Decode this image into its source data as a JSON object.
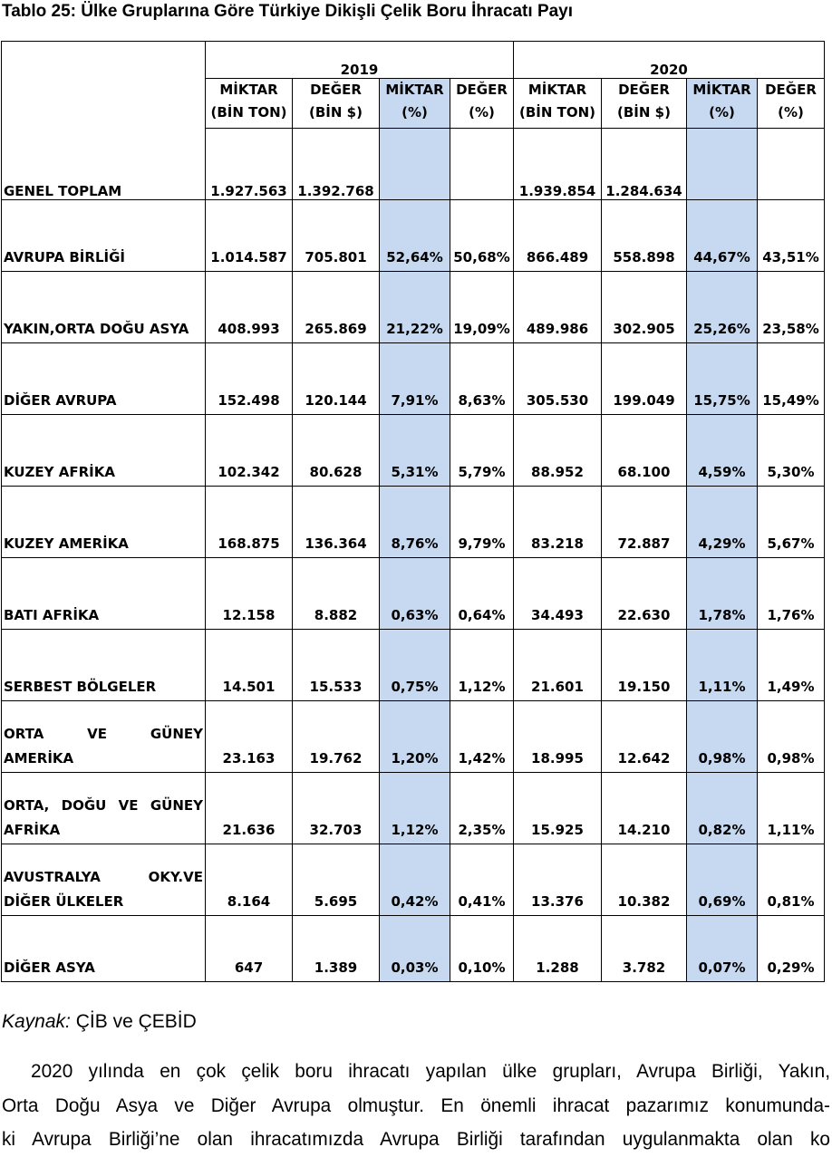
{
  "title": "Tablo 25: Ülke Gruplarına Göre Türkiye Dikişli Çelik Boru İhracatı Payı",
  "years": [
    "2019",
    "2020"
  ],
  "column_headers": [
    {
      "line1": "MİKTAR",
      "line2": "(BİN TON)"
    },
    {
      "line1": "DEĞER",
      "line2": "(BİN $)"
    },
    {
      "line1": "MİKTAR",
      "line2": "(%)"
    },
    {
      "line1": "DEĞER",
      "line2": "(%)"
    }
  ],
  "total_row": {
    "label": "GENEL TOPLAM",
    "y2019": [
      "1.927.563",
      "1.392.768",
      "",
      ""
    ],
    "y2020": [
      "1.939.854",
      "1.284.634",
      "",
      ""
    ]
  },
  "rows": [
    {
      "label_lines": [
        "AVRUPA BİRLİĞİ"
      ],
      "values": [
        "1.014.587",
        "705.801",
        "52,64%",
        "50,68%",
        "866.489",
        "558.898",
        "44,67%",
        "43,51%"
      ]
    },
    {
      "label_lines": [
        "YAKIN,ORTA DOĞU ASYA"
      ],
      "values": [
        "408.993",
        "265.869",
        "21,22%",
        "19,09%",
        "489.986",
        "302.905",
        "25,26%",
        "23,58%"
      ]
    },
    {
      "label_lines": [
        "DİĞER AVRUPA"
      ],
      "values": [
        "152.498",
        "120.144",
        "7,91%",
        "8,63%",
        "305.530",
        "199.049",
        "15,75%",
        "15,49%"
      ]
    },
    {
      "label_lines": [
        "KUZEY AFRİKA"
      ],
      "values": [
        "102.342",
        "80.628",
        "5,31%",
        "5,79%",
        "88.952",
        "68.100",
        "4,59%",
        "5,30%"
      ]
    },
    {
      "label_lines": [
        "KUZEY AMERİKA"
      ],
      "values": [
        "168.875",
        "136.364",
        "8,76%",
        "9,79%",
        "83.218",
        "72.887",
        "4,29%",
        "5,67%"
      ]
    },
    {
      "label_lines": [
        "BATI AFRİKA"
      ],
      "values": [
        "12.158",
        "8.882",
        "0,63%",
        "0,64%",
        "34.493",
        "22.630",
        "1,78%",
        "1,76%"
      ]
    },
    {
      "label_lines": [
        "SERBEST BÖLGELER"
      ],
      "values": [
        "14.501",
        "15.533",
        "0,75%",
        "1,12%",
        "21.601",
        "19.150",
        "1,11%",
        "1,49%"
      ]
    },
    {
      "label_lines": [
        "ORTA VE GÜNEY",
        "AMERİKA"
      ],
      "values": [
        "23.163",
        "19.762",
        "1,20%",
        "1,42%",
        "18.995",
        "12.642",
        "0,98%",
        "0,98%"
      ]
    },
    {
      "label_lines": [
        "ORTA, DOĞU VE GÜNEY",
        "AFRİKA"
      ],
      "values": [
        "21.636",
        "32.703",
        "1,12%",
        "2,35%",
        "15.925",
        "14.210",
        "0,82%",
        "1,11%"
      ]
    },
    {
      "label_lines": [
        "AVUSTRALYA OKY.VE",
        "DİĞER ÜLKELER"
      ],
      "values": [
        "8.164",
        "5.695",
        "0,42%",
        "0,41%",
        "13.376",
        "10.382",
        "0,69%",
        "0,81%"
      ]
    },
    {
      "label_lines": [
        "DİĞER ASYA"
      ],
      "values": [
        "647",
        "1.389",
        "0,03%",
        "0,10%",
        "1.288",
        "3.782",
        "0,07%",
        "0,29%"
      ]
    }
  ],
  "source": {
    "label": "Kaynak:",
    "text": "ÇİB ve ÇEBİD"
  },
  "paragraph_lines": [
    "2020 yılında en çok çelik boru ihracatı yapılan ülke grupları, Avrupa Birliği, Yakın,",
    "Orta Doğu Asya ve Diğer Avrupa olmuştur. En önemli ihracat pazarımız konumunda-",
    "ki Avrupa Birliği’ne olan ihracatımızda Avrupa Birliği tarafından uygulanmakta olan ko"
  ]
}
